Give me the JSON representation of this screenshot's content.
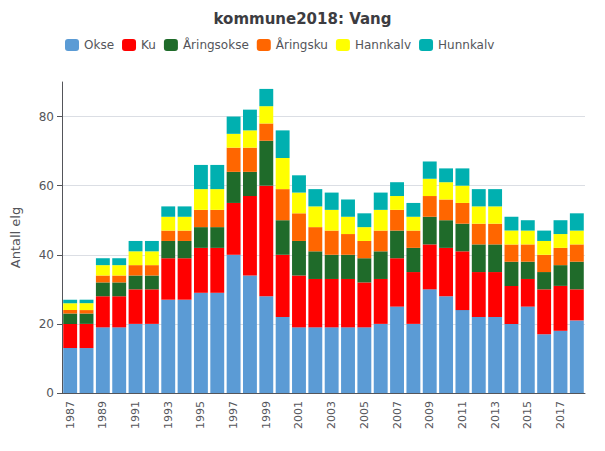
{
  "chart_data": {
    "type": "bar",
    "title": "kommune2018: Vang",
    "ylabel": "Antall elg",
    "stacked": true,
    "grid": true,
    "legend": "upper left",
    "categories": [
      1987,
      null,
      1989,
      null,
      1991,
      null,
      1993,
      null,
      1995,
      null,
      1997,
      null,
      1999,
      null,
      2001,
      null,
      2003,
      null,
      2005,
      null,
      2007,
      null,
      2009,
      null,
      2011,
      null,
      2013,
      null,
      2015,
      null,
      2017,
      null
    ],
    "ylim": [
      0,
      90
    ],
    "yticks": [
      0,
      20,
      40,
      60,
      80
    ],
    "series": [
      {
        "name": "Okse",
        "color": "#5B9BD5",
        "values": [
          13,
          13,
          19,
          19,
          20,
          20,
          27,
          27,
          29,
          29,
          40,
          34,
          28,
          22,
          19,
          19,
          19,
          19,
          19,
          20,
          25,
          20,
          30,
          28,
          24,
          22,
          22,
          20,
          25,
          17,
          18,
          21
        ]
      },
      {
        "name": "Ku",
        "color": "#FF0000",
        "values": [
          7,
          7,
          9,
          9,
          10,
          10,
          12,
          12,
          13,
          13,
          15,
          23,
          32,
          18,
          15,
          14,
          14,
          14,
          13,
          13,
          14,
          15,
          13,
          14,
          17,
          13,
          13,
          11,
          8,
          13,
          13,
          9
        ]
      },
      {
        "name": "Åringsokse",
        "color": "#1F6B2A",
        "values": [
          3,
          3,
          4,
          4,
          4,
          4,
          5,
          5,
          6,
          6,
          9,
          7,
          13,
          10,
          10,
          8,
          7,
          7,
          7,
          8,
          8,
          7,
          8,
          8,
          8,
          8,
          8,
          7,
          5,
          5,
          6,
          8
        ]
      },
      {
        "name": "Åringsku",
        "color": "#FF6600",
        "values": [
          1,
          1,
          2,
          2,
          3,
          3,
          3,
          3,
          5,
          5,
          7,
          7,
          5,
          9,
          8,
          7,
          7,
          6,
          5,
          6,
          6,
          5,
          6,
          6,
          6,
          6,
          6,
          5,
          5,
          5,
          5,
          5
        ]
      },
      {
        "name": "Hannkalv",
        "color": "#FFFF00",
        "values": [
          2,
          2,
          3,
          3,
          4,
          4,
          4,
          4,
          6,
          6,
          4,
          5,
          5,
          9,
          6,
          6,
          6,
          5,
          4,
          6,
          4,
          4,
          5,
          5,
          5,
          5,
          5,
          4,
          4,
          4,
          4,
          4
        ]
      },
      {
        "name": "Hunnkalv",
        "color": "#00B0B0",
        "values": [
          1,
          1,
          2,
          2,
          3,
          3,
          3,
          3,
          7,
          7,
          5,
          6,
          5,
          8,
          5,
          5,
          5,
          5,
          4,
          5,
          4,
          4,
          5,
          4,
          5,
          5,
          5,
          4,
          3,
          3,
          4,
          5
        ]
      }
    ]
  }
}
